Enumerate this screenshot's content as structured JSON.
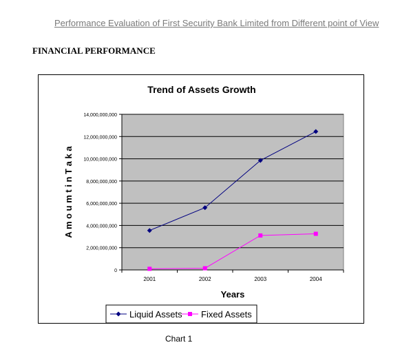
{
  "document": {
    "header": "Performance Evaluation of First Security Bank Limited from Different point of View",
    "section_title": "FINANCIAL PERFORMANCE",
    "caption": "Chart 1"
  },
  "chart_data": {
    "type": "line",
    "title": "Trend of Assets Growth",
    "xlabel": "Years",
    "ylabel": "A m o u m t i n   T a k a",
    "categories": [
      "2001",
      "2002",
      "2003",
      "2004"
    ],
    "ylim": [
      0,
      14000000000
    ],
    "yticks": [
      0,
      2000000000,
      4000000000,
      6000000000,
      8000000000,
      10000000000,
      12000000000,
      14000000000
    ],
    "ytick_labels": [
      "0",
      "2,000,000,000",
      "4,000,000,000",
      "6,000,000,000",
      "8,000,000,000",
      "10,000,000,000",
      "12,000,000,000",
      "14,000,000,000"
    ],
    "grid": true,
    "legend_position": "bottom",
    "plot_background": "#c0c0c0",
    "series": [
      {
        "name": "Liquid Assets",
        "color": "#000080",
        "marker": "diamond",
        "values": [
          3550000000,
          5600000000,
          9850000000,
          12450000000
        ]
      },
      {
        "name": "Fixed Assets",
        "color": "#ff00ff",
        "marker": "square",
        "values": [
          100000000,
          150000000,
          3100000000,
          3250000000
        ]
      }
    ]
  }
}
